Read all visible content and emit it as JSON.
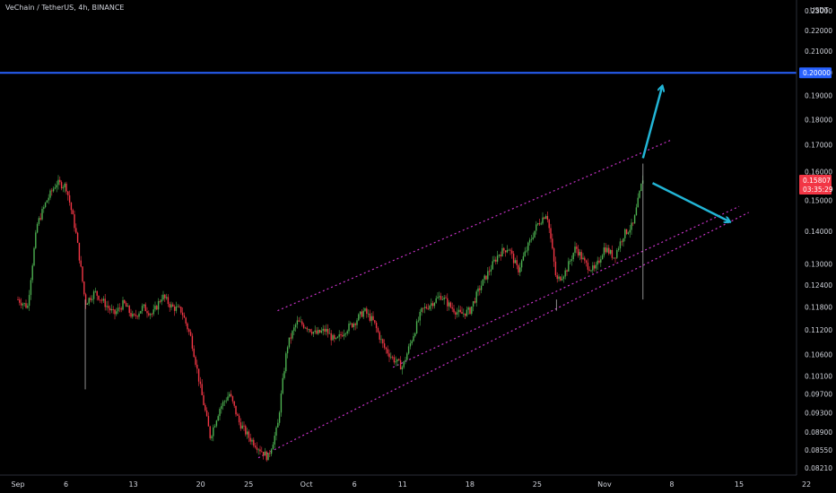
{
  "header": {
    "title": "VeChain / TetherUS, 4h, BINANCE"
  },
  "price_axis": {
    "currency": "USDT"
  },
  "price_badge": {
    "price": "0.15807",
    "countdown": "03:35:29",
    "color": "#f23645"
  },
  "level_badge": {
    "price": "0.20000",
    "color": "#2962ff"
  },
  "colors": {
    "up": "#4caf50",
    "down": "#f23645",
    "channel": "#c833c8",
    "arrow": "#22b5d6",
    "level": "#2962ff"
  },
  "chart_data": {
    "type": "candlestick",
    "title": "VeChain / TetherUS, 4h, BINANCE",
    "yscale": "log",
    "y_ticks": [
      "0.23000",
      "0.22000",
      "0.21000",
      "0.20000",
      "0.19000",
      "0.18000",
      "0.17000",
      "0.16000",
      "0.15000",
      "0.14000",
      "0.13000",
      "0.12400",
      "0.11800",
      "0.11200",
      "0.10600",
      "0.10100",
      "0.09700",
      "0.09300",
      "0.08900",
      "0.08550",
      "0.08210"
    ],
    "x_ticks": [
      "Sep",
      "6",
      "13",
      "20",
      "25",
      "Oct",
      "6",
      "11",
      "18",
      "25",
      "Nov",
      "8",
      "15",
      "22"
    ],
    "horizontal_line": 0.2,
    "last_price": 0.15807,
    "channel_lines": [
      {
        "from": [
          "2021-09-28",
          0.117
        ],
        "to": [
          "2021-11-08",
          0.172
        ]
      },
      {
        "from": [
          "2021-10-10",
          0.103
        ],
        "to": [
          "2021-11-15",
          0.148
        ]
      },
      {
        "from": [
          "2021-09-26",
          0.084
        ],
        "to": [
          "2021-11-16",
          0.146
        ]
      }
    ],
    "arrows": [
      {
        "from": [
          "2021-11-05",
          0.165
        ],
        "to": [
          "2021-11-07",
          0.194
        ]
      },
      {
        "from": [
          "2021-11-06",
          0.156
        ],
        "to": [
          "2021-11-14",
          0.143
        ]
      }
    ],
    "price_path": [
      [
        "2021-09-01",
        0.12
      ],
      [
        "2021-09-02",
        0.118
      ],
      [
        "2021-09-03",
        0.142
      ],
      [
        "2021-09-04",
        0.15
      ],
      [
        "2021-09-05",
        0.156
      ],
      [
        "2021-09-06",
        0.155
      ],
      [
        "2021-09-07",
        0.14
      ],
      [
        "2021-09-08",
        0.119
      ],
      [
        "2021-09-09",
        0.122
      ],
      [
        "2021-09-10",
        0.119
      ],
      [
        "2021-09-11",
        0.116
      ],
      [
        "2021-09-12",
        0.119
      ],
      [
        "2021-09-13",
        0.115
      ],
      [
        "2021-09-14",
        0.118
      ],
      [
        "2021-09-15",
        0.116
      ],
      [
        "2021-09-16",
        0.121
      ],
      [
        "2021-09-17",
        0.118
      ],
      [
        "2021-09-18",
        0.117
      ],
      [
        "2021-09-19",
        0.11
      ],
      [
        "2021-09-20",
        0.098
      ],
      [
        "2021-09-21",
        0.088
      ],
      [
        "2021-09-22",
        0.094
      ],
      [
        "2021-09-23",
        0.097
      ],
      [
        "2021-09-24",
        0.091
      ],
      [
        "2021-09-25",
        0.088
      ],
      [
        "2021-09-26",
        0.086
      ],
      [
        "2021-09-27",
        0.084
      ],
      [
        "2021-09-28",
        0.09
      ],
      [
        "2021-09-29",
        0.108
      ],
      [
        "2021-09-30",
        0.114
      ],
      [
        "2021-10-01",
        0.113
      ],
      [
        "2021-10-02",
        0.111
      ],
      [
        "2021-10-03",
        0.112
      ],
      [
        "2021-10-04",
        0.109
      ],
      [
        "2021-10-05",
        0.112
      ],
      [
        "2021-10-06",
        0.114
      ],
      [
        "2021-10-07",
        0.117
      ],
      [
        "2021-10-08",
        0.114
      ],
      [
        "2021-10-09",
        0.108
      ],
      [
        "2021-10-10",
        0.105
      ],
      [
        "2021-10-11",
        0.103
      ],
      [
        "2021-10-12",
        0.11
      ],
      [
        "2021-10-13",
        0.117
      ],
      [
        "2021-10-14",
        0.119
      ],
      [
        "2021-10-15",
        0.121
      ],
      [
        "2021-10-16",
        0.118
      ],
      [
        "2021-10-17",
        0.116
      ],
      [
        "2021-10-18",
        0.117
      ],
      [
        "2021-10-19",
        0.123
      ],
      [
        "2021-10-20",
        0.128
      ],
      [
        "2021-10-21",
        0.133
      ],
      [
        "2021-10-22",
        0.135
      ],
      [
        "2021-10-23",
        0.128
      ],
      [
        "2021-10-24",
        0.135
      ],
      [
        "2021-10-25",
        0.142
      ],
      [
        "2021-10-26",
        0.146
      ],
      [
        "2021-10-27",
        0.125
      ],
      [
        "2021-10-28",
        0.128
      ],
      [
        "2021-10-29",
        0.135
      ],
      [
        "2021-10-30",
        0.13
      ],
      [
        "2021-10-31",
        0.128
      ],
      [
        "2021-11-01",
        0.135
      ],
      [
        "2021-11-02",
        0.132
      ],
      [
        "2021-11-03",
        0.139
      ],
      [
        "2021-11-04",
        0.142
      ],
      [
        "2021-11-05",
        0.158
      ]
    ]
  }
}
